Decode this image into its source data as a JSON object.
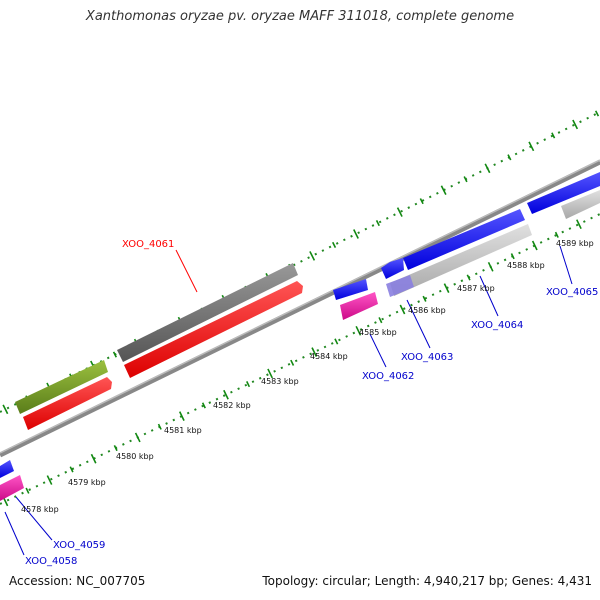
{
  "title": "Xanthomonas oryzae pv. oryzae MAFF 311018, complete genome",
  "footer": {
    "accession": "Accession: NC_007705",
    "summary": "Topology: circular; Length: 4,940,217 bp; Genes: 4,431"
  },
  "scale_labels": [
    "4578 kbp",
    "4579 kbp",
    "4580 kbp",
    "4581 kbp",
    "4582 kbp",
    "4583 kbp",
    "4584 kbp",
    "4585 kbp",
    "4586 kbp",
    "4587 kbp",
    "4588 kbp",
    "4589 kbp"
  ],
  "gene_labels": [
    "XOO_4058",
    "XOO_4059",
    "XOO_4061",
    "XOO_4062",
    "XOO_4063",
    "XOO_4064",
    "XOO_4065"
  ],
  "colors": {
    "highlight_label": "#ff0000",
    "gene_label": "#0000cc",
    "backbone": "#888888",
    "tick": "#118811",
    "cds_red": "#ff0000",
    "cds_gray": "#777777",
    "cds_olive": "#6b8e23",
    "cds_blue": "#1a1aff",
    "cds_magenta": "#e6169a",
    "cds_lightgray": "#bbbbbb",
    "cds_lavender": "#8a7fe0"
  }
}
